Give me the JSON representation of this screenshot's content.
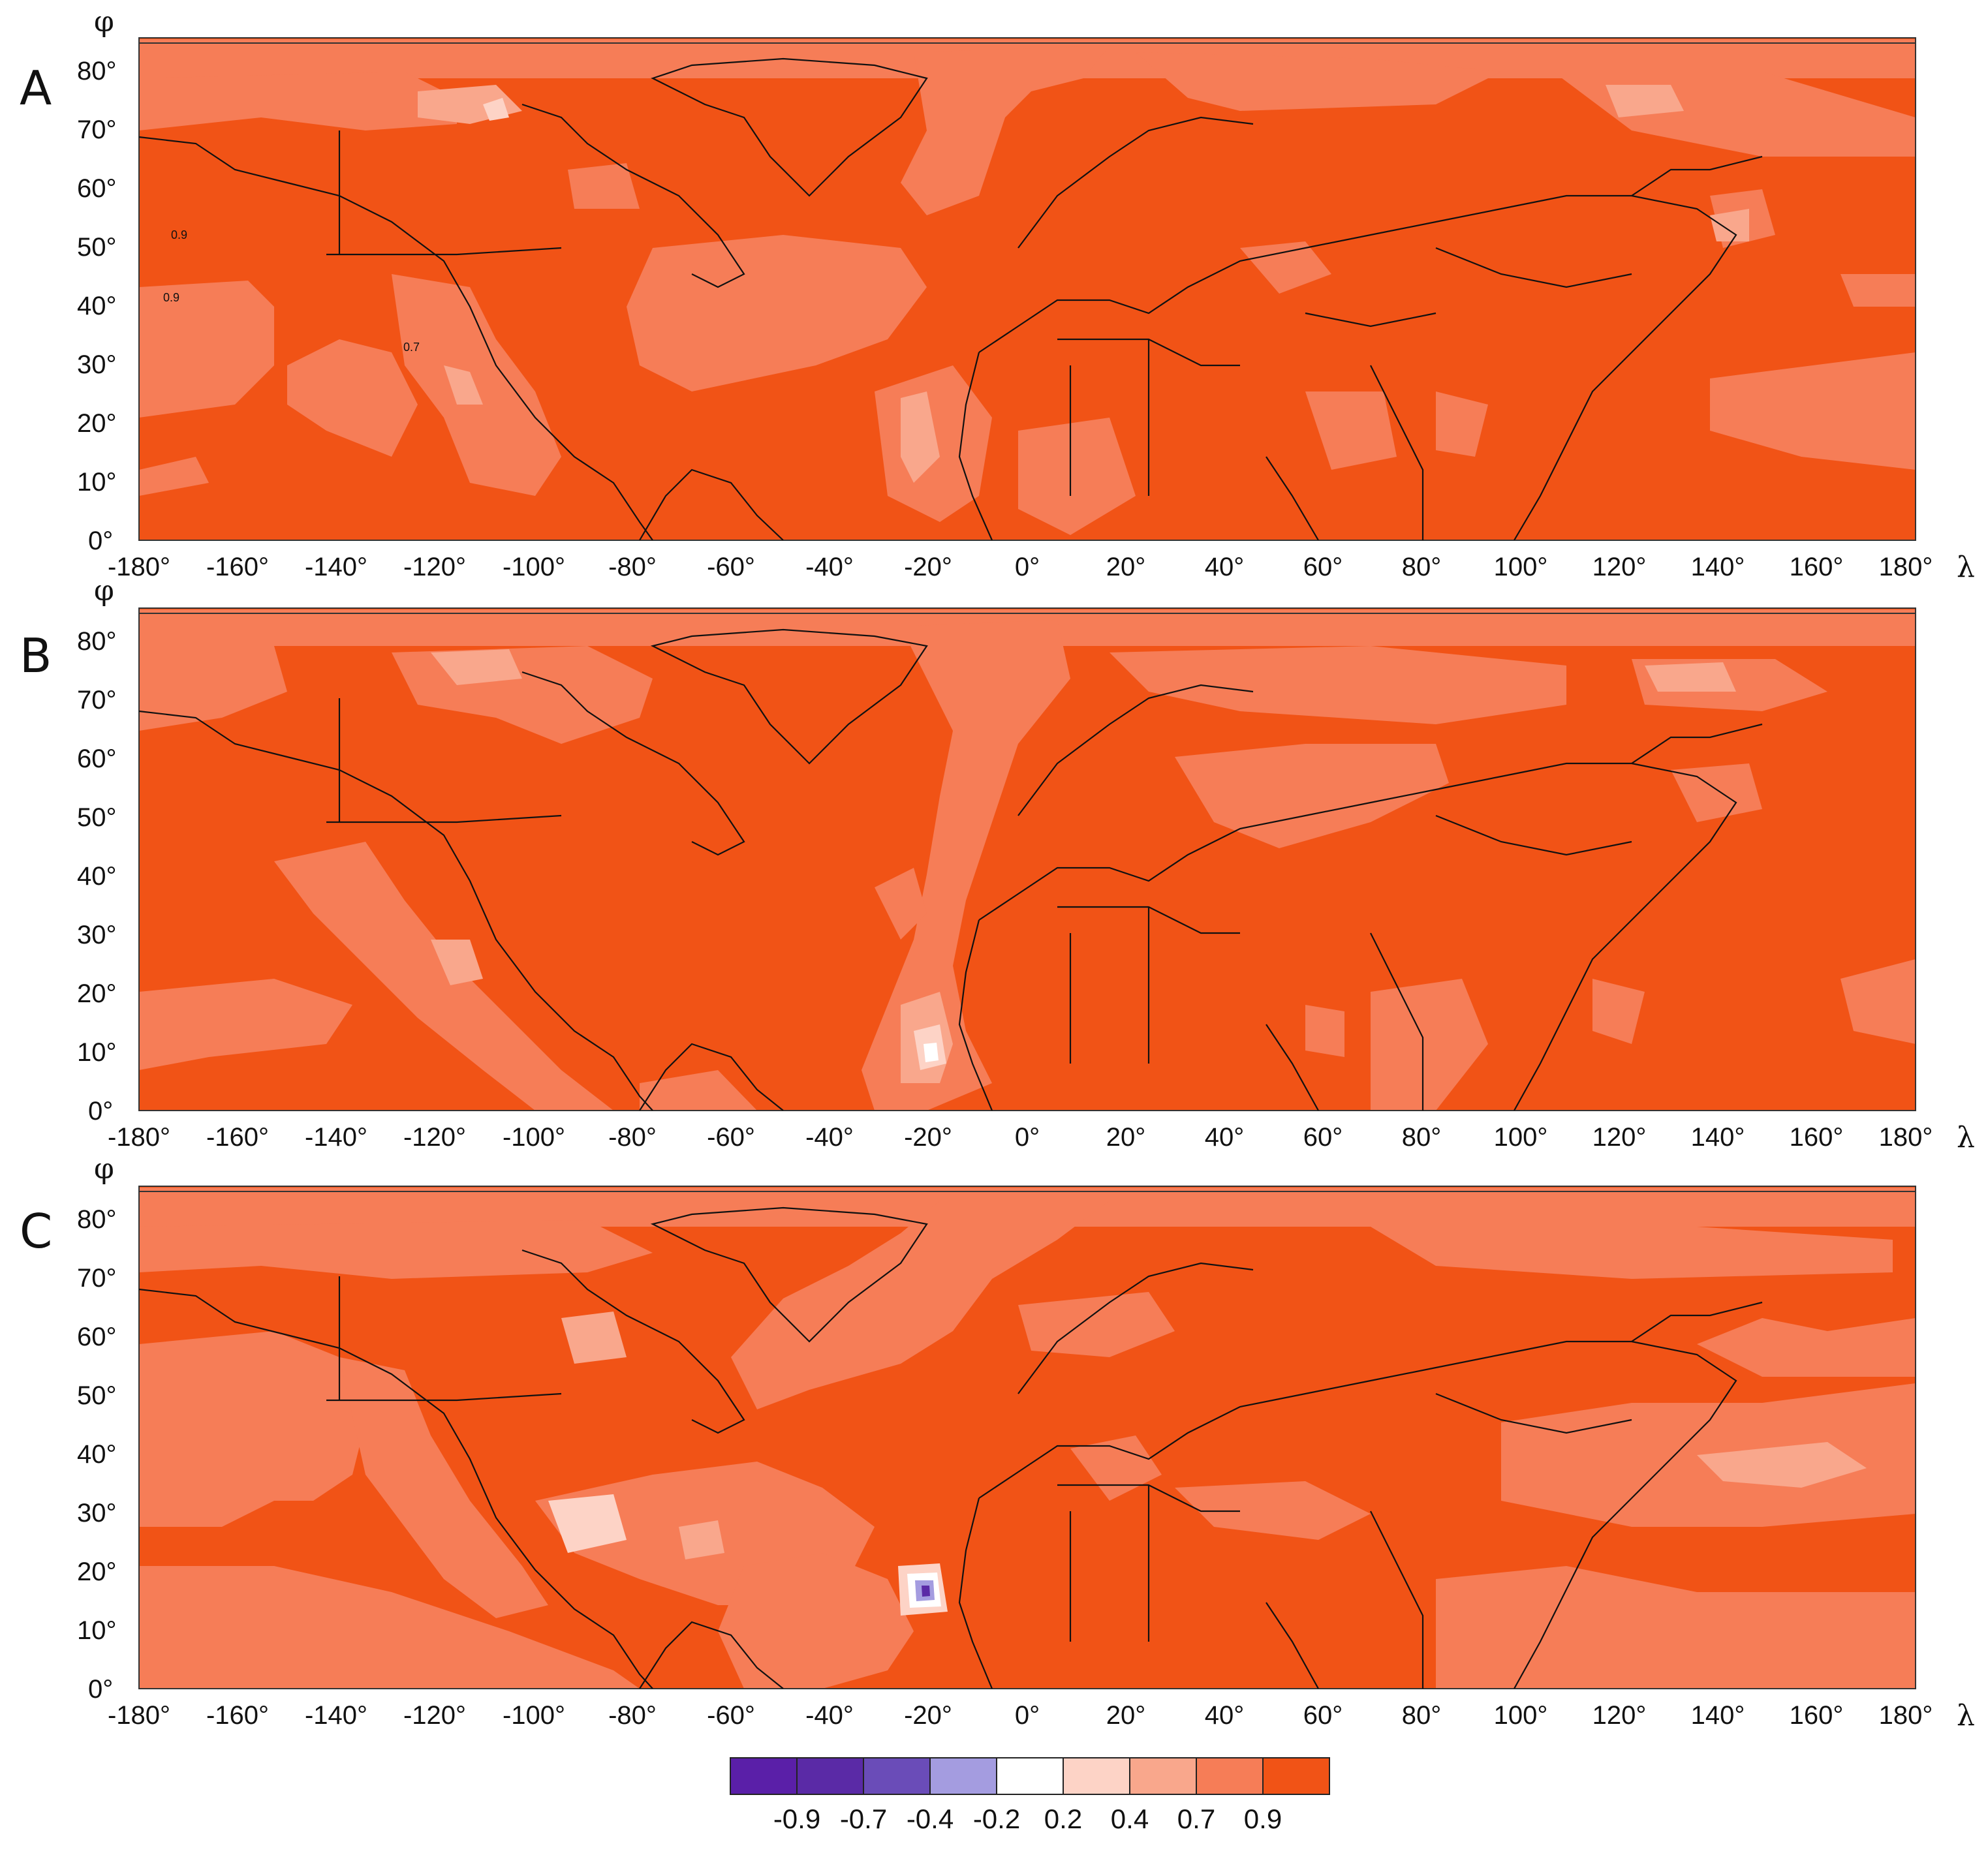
{
  "panels": [
    {
      "letter": "A"
    },
    {
      "letter": "B"
    },
    {
      "letter": "C"
    }
  ],
  "axes": {
    "x_symbol": "λ",
    "y_symbol": "φ",
    "x_ticks": [
      "-180°",
      "-160°",
      "-140°",
      "-120°",
      "-100°",
      "-80°",
      "-60°",
      "-40°",
      "-20°",
      "0°",
      "20°",
      "40°",
      "60°",
      "80°",
      "100°",
      "120°",
      "140°",
      "160°",
      "180°"
    ],
    "y_ticks": [
      "0°",
      "10°",
      "20°",
      "30°",
      "40°",
      "50°",
      "60°",
      "70°",
      "80°"
    ],
    "x_range": [
      -180,
      180
    ],
    "y_range": [
      0,
      85
    ]
  },
  "contour_labels": [
    {
      "text": "0.9"
    },
    {
      "text": "0.9"
    },
    {
      "text": "0.7"
    }
  ],
  "legend": {
    "labels": [
      "-0.9",
      "-0.7",
      "-0.4",
      "-0.2",
      "0.2",
      "0.4",
      "0.7",
      "0.9"
    ],
    "colors": [
      "#5a1fa8",
      "#5a2aa6",
      "#6a4cb8",
      "#a49ce0",
      "#ffffff",
      "#fdd3c6",
      "#f9a78c",
      "#f67d57",
      "#f15316"
    ]
  },
  "colors": {
    "high": "#f15316",
    "mid": "#f67d57",
    "low": "#f9a78c",
    "lower": "#fdd3c6"
  }
}
